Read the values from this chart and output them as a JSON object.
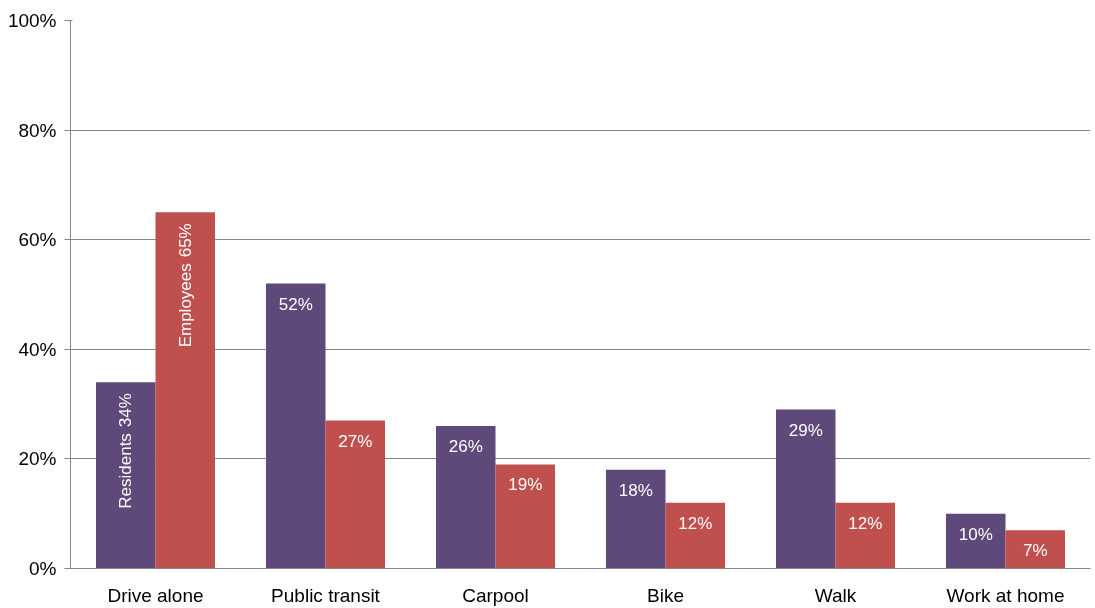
{
  "chart_data": {
    "type": "bar",
    "categories": [
      "Drive alone",
      "Public transit",
      "Carpool",
      "Bike",
      "Walk",
      "Work at home"
    ],
    "series": [
      {
        "name": "Residents",
        "color": "#5f497a",
        "values": [
          34,
          52,
          26,
          18,
          29,
          10
        ],
        "value_labels": [
          "34%",
          "52%",
          "26%",
          "18%",
          "29%",
          "10%"
        ]
      },
      {
        "name": "Employees",
        "color": "#c0504d",
        "values": [
          65,
          27,
          19,
          12,
          12,
          7
        ],
        "value_labels": [
          "65%",
          "27%",
          "19%",
          "12%",
          "12%",
          "7%"
        ]
      }
    ],
    "ylim": [
      0,
      100
    ],
    "yticks": [
      {
        "value": 0,
        "label": "0%"
      },
      {
        "value": 20,
        "label": "20%"
      },
      {
        "value": 40,
        "label": "40%"
      },
      {
        "value": 60,
        "label": "60%"
      },
      {
        "value": 80,
        "label": "80%"
      },
      {
        "value": 100,
        "label": "100%"
      }
    ],
    "grid": "y"
  }
}
